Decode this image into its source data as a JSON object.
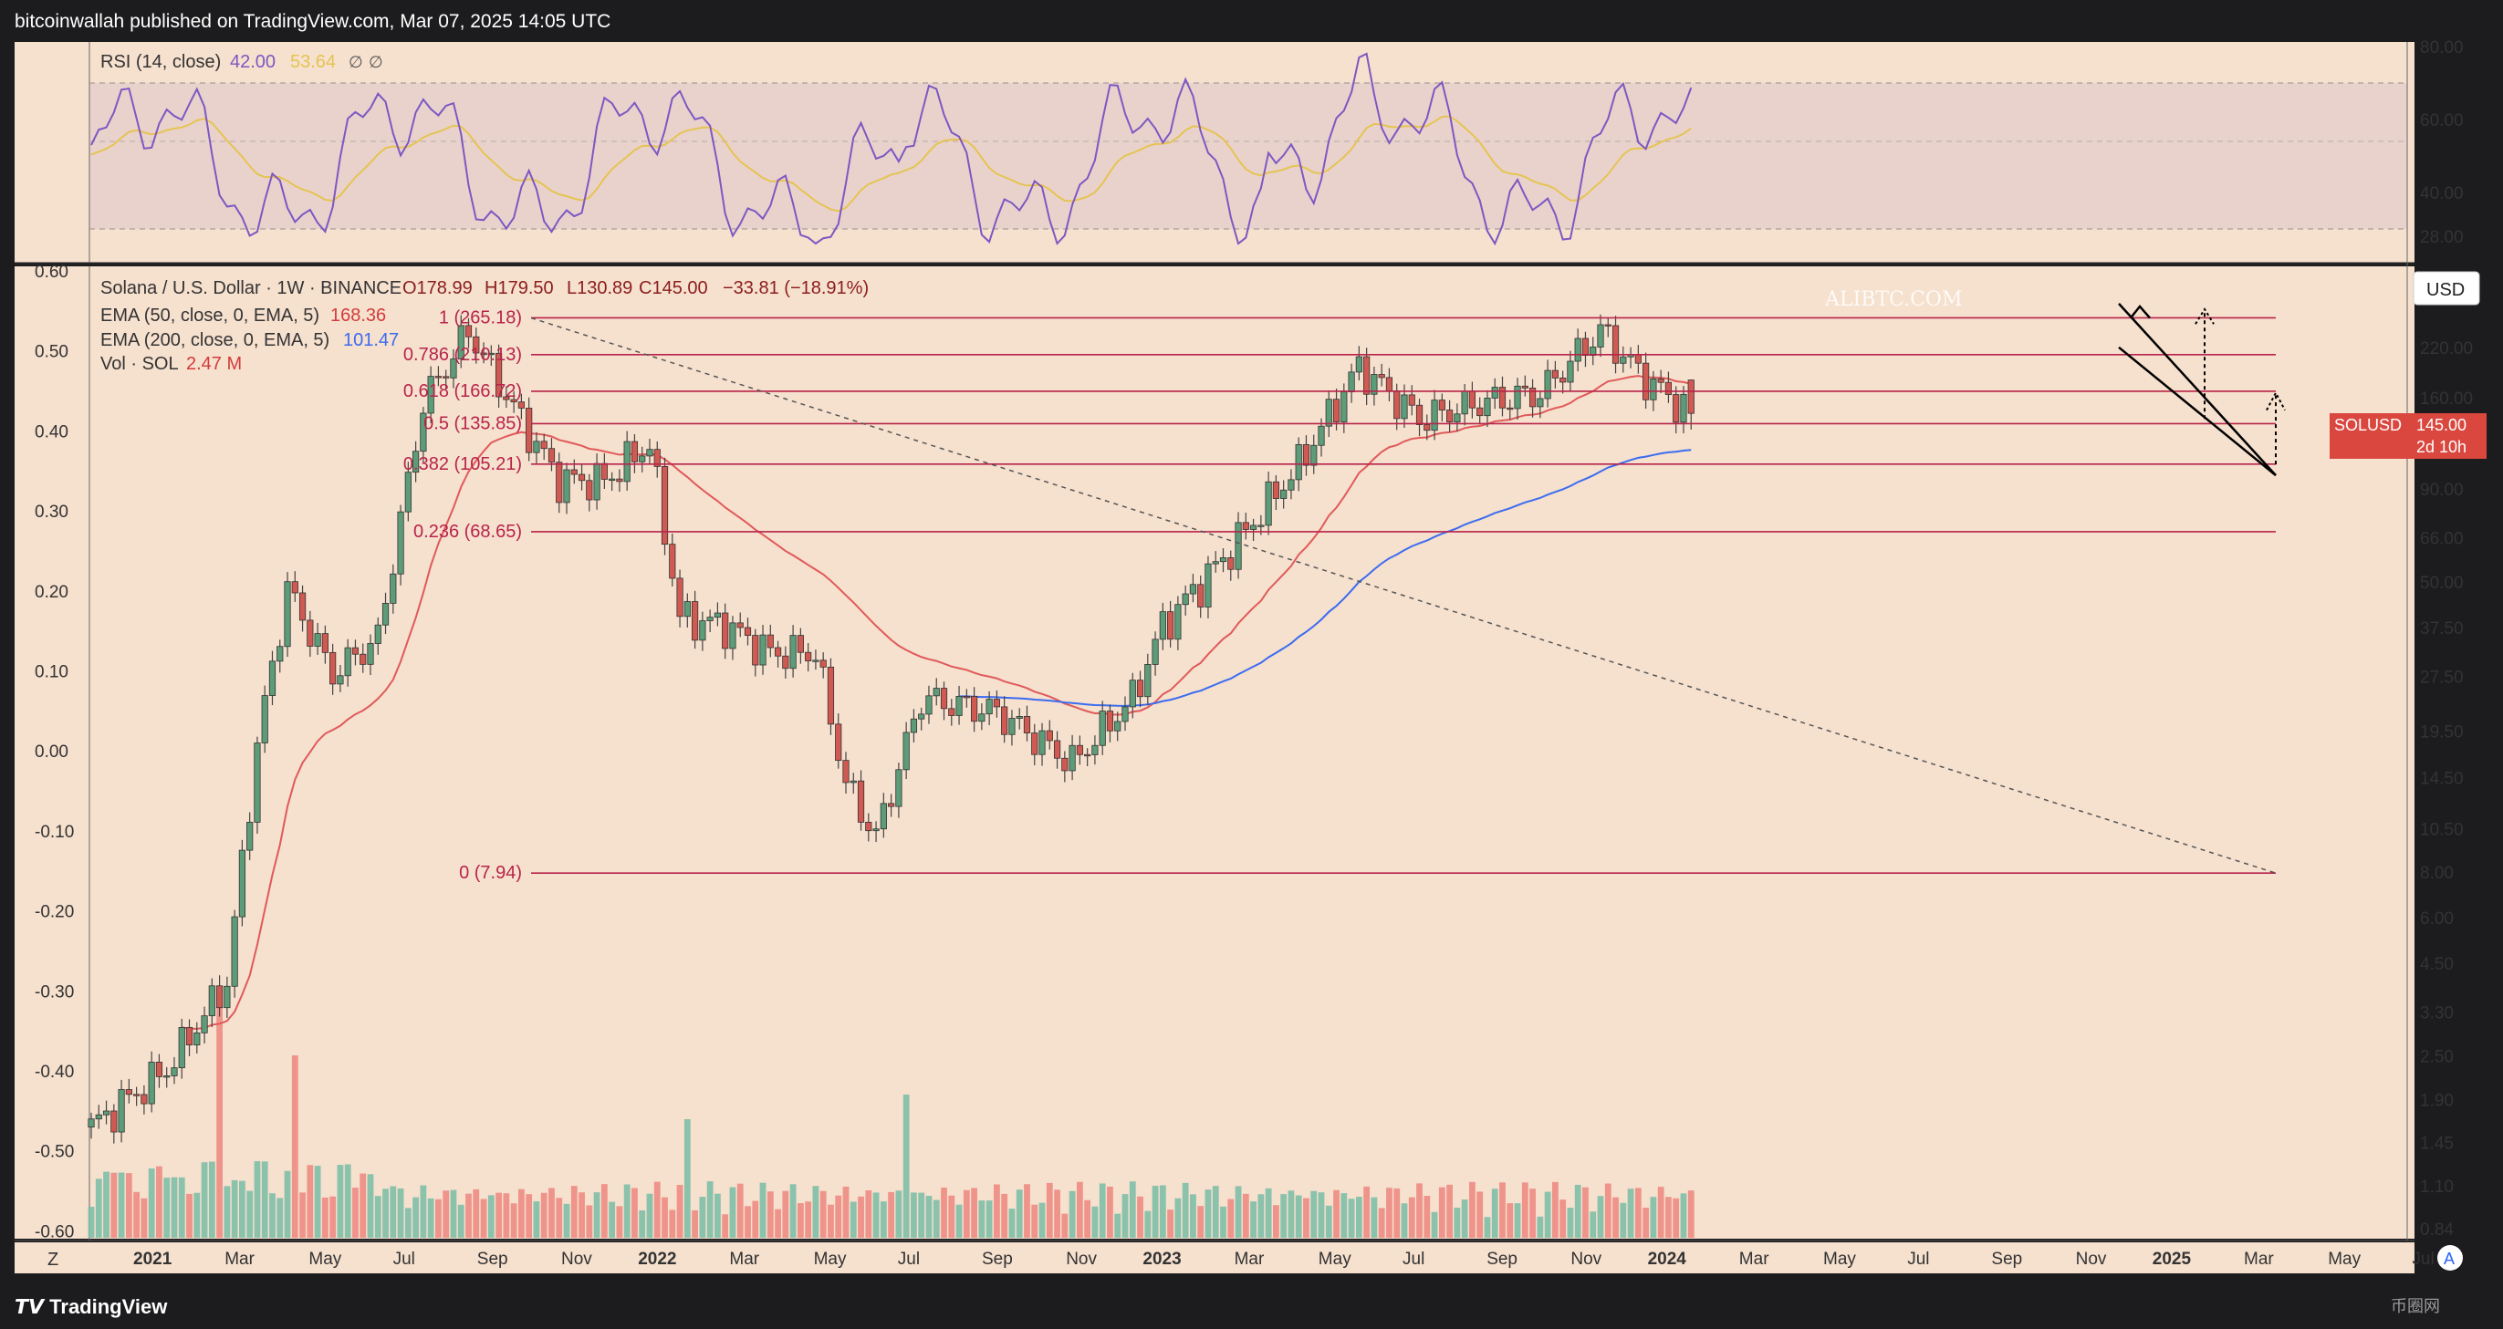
{
  "header": {
    "publisher_line": "bitcoinwallah published on TradingView.com, Mar 07, 2025 14:05 UTC"
  },
  "footer": {
    "brand": "TradingView",
    "left_button": "Z",
    "right_button": "A",
    "corner_watermark": "币圈网"
  },
  "watermark": "ALIBTC.COM",
  "rsi": {
    "title": "RSI (14, close)",
    "value": "42.00",
    "ma_value": "53.64",
    "symbols": [
      "∅",
      "∅"
    ],
    "axis_ticks": [
      "80.00",
      "60.00",
      "40.00",
      "28.00"
    ],
    "colors": {
      "rsi": "#7e57c2",
      "ma": "#e5c452",
      "overbought_fill": "#8ccf8c"
    }
  },
  "price": {
    "title": "Solana / U.S. Dollar · 1W · BINANCE",
    "ohlc": {
      "open": "O178.99",
      "high": "H179.50",
      "low": "L130.89",
      "close": "C145.00",
      "change": "−33.81 (−18.91%)"
    },
    "ema50": {
      "label": "EMA (50, close, 0, EMA, 5)",
      "value": "168.36",
      "color": "#e05a5a"
    },
    "ema200": {
      "label": "EMA (200, close, 0, EMA, 5)",
      "value": "101.47",
      "color": "#3b6cf0"
    },
    "volume": {
      "label": "Vol · SOL",
      "value": "2.47 M"
    },
    "currency_button": "USD",
    "symbol_badge": {
      "symbol": "SOLUSD",
      "price": "145.00",
      "countdown": "2d 10h",
      "color": "#d9473f"
    },
    "right_axis_ticks": [
      "300.00",
      "220.00",
      "160.00",
      "120.00",
      "90.00",
      "66.00",
      "50.00",
      "37.50",
      "27.50",
      "19.50",
      "14.50",
      "10.50",
      "8.00",
      "6.00",
      "4.50",
      "3.30",
      "2.50",
      "1.90",
      "1.45",
      "1.10",
      "0.84"
    ],
    "left_axis_ticks": [
      "0.60",
      "0.50",
      "0.40",
      "0.30",
      "0.20",
      "0.10",
      "0.00",
      "-0.10",
      "-0.20",
      "-0.30",
      "-0.40",
      "-0.50",
      "-0.60"
    ],
    "fib_levels": [
      {
        "label": "1 (265.18)",
        "price": 265.18
      },
      {
        "label": "0.786 (210.13)",
        "price": 210.13
      },
      {
        "label": "0.618 (166.72)",
        "price": 166.72
      },
      {
        "label": "0.5 (135.85)",
        "price": 135.85
      },
      {
        "label": "0.382 (105.21)",
        "price": 105.21
      },
      {
        "label": "0.236 (68.65)",
        "price": 68.65
      },
      {
        "label": "0 (7.94)",
        "price": 7.94
      }
    ],
    "fib_color": "#b8244a",
    "x_axis_labels": [
      "2021",
      "Mar",
      "May",
      "Jul",
      "Sep",
      "Nov",
      "2022",
      "Mar",
      "May",
      "Jul",
      "Sep",
      "Nov",
      "2023",
      "Mar",
      "May",
      "Jul",
      "Sep",
      "Nov",
      "2024",
      "Mar",
      "May",
      "Jul",
      "Sep",
      "Nov",
      "2025",
      "Mar",
      "May",
      "Jul"
    ]
  },
  "chart_data": {
    "type": "candlestick",
    "title": "Solana / U.S. Dollar · 1W · BINANCE",
    "scale": "log",
    "xlabel": "",
    "ylabel": "",
    "ylim": [
      0.7,
      400
    ],
    "grid": false,
    "interval": "1W",
    "series": [
      {
        "name": "SOLUSD",
        "x": [
          "2020-12",
          "2021-02",
          "2021-04",
          "2021-05",
          "2021-06",
          "2021-08",
          "2021-09",
          "2021-11",
          "2021-12",
          "2022-01",
          "2022-03",
          "2022-04",
          "2022-05",
          "2022-06",
          "2022-08",
          "2022-10",
          "2022-11",
          "2022-12",
          "2023-01",
          "2023-03",
          "2023-06",
          "2023-08",
          "2023-10",
          "2023-11",
          "2024-01",
          "2024-03",
          "2024-06",
          "2024-08",
          "2024-10",
          "2024-11",
          "2025-01",
          "2025-02",
          "2025-03"
        ],
        "close": [
          1.6,
          2.3,
          4.0,
          18,
          48,
          28,
          35,
          155,
          245,
          150,
          95,
          95,
          120,
          40,
          38,
          32,
          32,
          14,
          10,
          24,
          22,
          16,
          24,
          38,
          58,
          105,
          195,
          140,
          155,
          165,
          245,
          180,
          145
        ]
      },
      {
        "name": "EMA (50, close, 0, EMA, 5)",
        "values_note": "",
        "last": 168.36
      },
      {
        "name": "EMA (200, close, 0, EMA, 5)",
        "last": 101.47
      }
    ],
    "last_bar": {
      "open": 178.99,
      "high": 179.5,
      "low": 130.89,
      "close": 145.0,
      "change": -33.81,
      "change_pct": -18.91
    }
  }
}
